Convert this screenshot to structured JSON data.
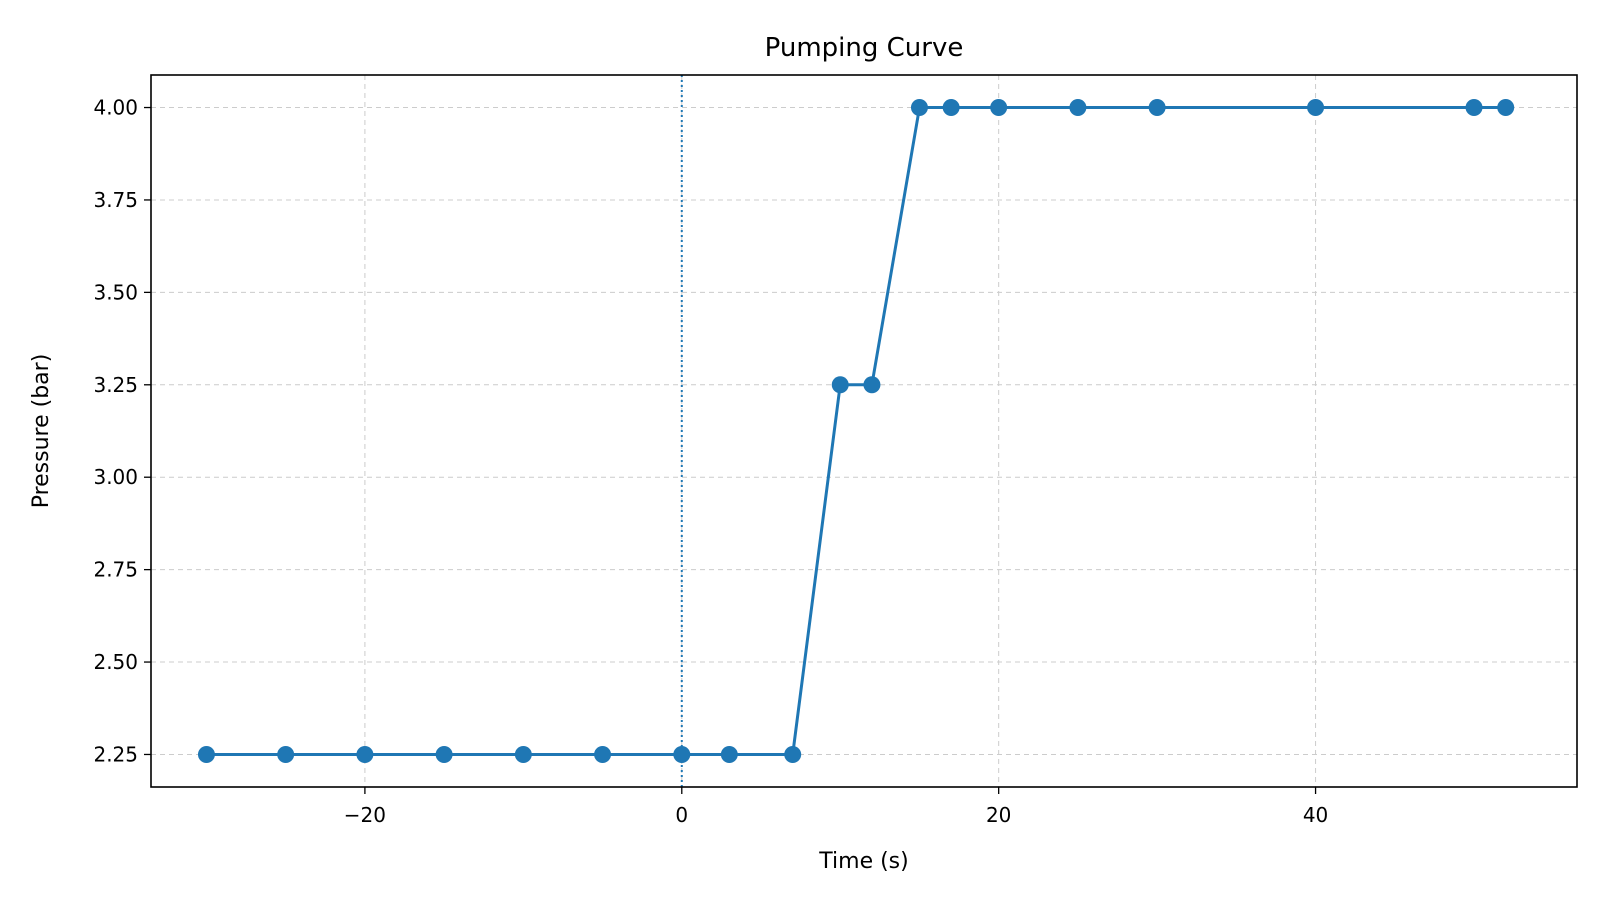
{
  "chart_data": {
    "type": "line",
    "title": "Pumping Curve",
    "xlabel": "Time (s)",
    "ylabel": "Pressure (bar)",
    "xlim": [
      -33.5,
      56.5
    ],
    "ylim": [
      2.162,
      4.088
    ],
    "xticks": [
      -20,
      0,
      20,
      40
    ],
    "xtick_labels": [
      "−20",
      "0",
      "20",
      "40"
    ],
    "yticks": [
      2.25,
      2.5,
      2.75,
      3.0,
      3.25,
      3.5,
      3.75,
      4.0
    ],
    "ytick_labels": [
      "2.25",
      "2.50",
      "2.75",
      "3.00",
      "3.25",
      "3.50",
      "3.75",
      "4.00"
    ],
    "grid": true,
    "vline": {
      "x": 0,
      "style": "dotted",
      "color": "#1f77b4"
    },
    "series": [
      {
        "color": "#1f77b4",
        "marker": "circle",
        "x": [
          -30,
          -25,
          -20,
          -15,
          -10,
          -5,
          0,
          3,
          7,
          10,
          12,
          15,
          17,
          20,
          25,
          30,
          40,
          50,
          52
        ],
        "y": [
          2.25,
          2.25,
          2.25,
          2.25,
          2.25,
          2.25,
          2.25,
          2.25,
          2.25,
          3.25,
          3.25,
          4.0,
          4.0,
          4.0,
          4.0,
          4.0,
          4.0,
          4.0,
          4.0
        ]
      }
    ]
  }
}
